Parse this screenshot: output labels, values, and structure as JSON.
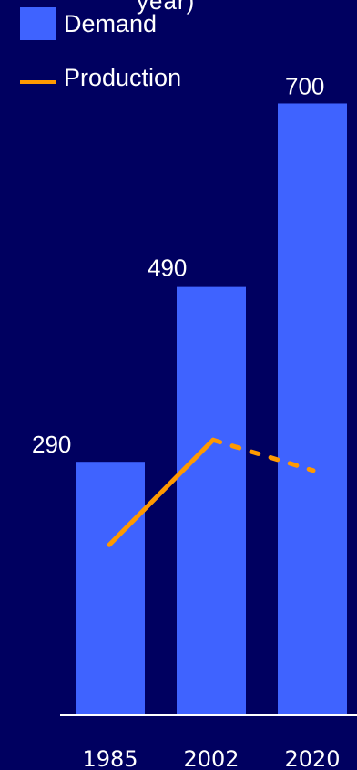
{
  "chart_data": {
    "type": "bar",
    "title_fragment": "year)",
    "categories": [
      "1985",
      "2002",
      "2020"
    ],
    "series": [
      {
        "name": "Demand",
        "kind": "bar",
        "values": [
          290,
          490,
          700
        ],
        "color": "#3f63ff"
      },
      {
        "name": "Production",
        "kind": "line",
        "values": [
          195,
          315,
          280
        ],
        "color": "#ff9900",
        "dashed_after_index": 1
      }
    ],
    "value_labels": [
      "290",
      "490",
      "700"
    ],
    "ylim": [
      0,
      760
    ],
    "grid": false,
    "legend_position": "top-left",
    "background_color": "#000060"
  }
}
